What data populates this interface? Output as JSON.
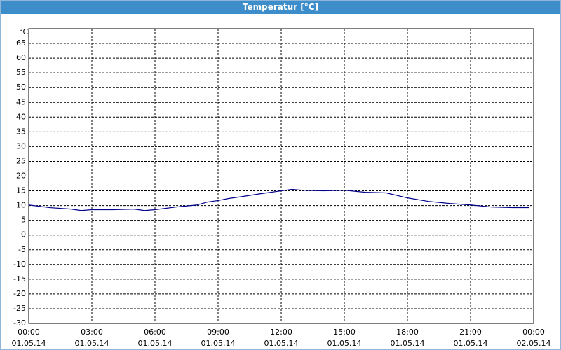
{
  "chart_data": {
    "type": "line",
    "title": "Temperatur [°C]",
    "ylabel": "°C",
    "x": [
      0,
      1,
      2,
      2.5,
      3,
      4,
      5,
      5.5,
      6,
      7,
      8,
      8.5,
      9,
      9.5,
      10,
      11,
      12,
      12.5,
      13,
      14,
      15,
      16,
      17,
      18,
      19,
      20,
      21,
      22,
      23,
      23.8
    ],
    "series": [
      {
        "name": "Temperatur",
        "color": "#00008b",
        "values": [
          10.2,
          9.3,
          8.8,
          8.3,
          8.6,
          8.6,
          8.8,
          8.3,
          8.6,
          9.5,
          10.2,
          11.2,
          11.7,
          12.4,
          12.9,
          14,
          15,
          15.5,
          15.2,
          15,
          15.2,
          14.5,
          14.3,
          12.6,
          11.4,
          10.7,
          10.2,
          9.5,
          9.3,
          9.3
        ]
      }
    ],
    "xlim": [
      0,
      24
    ],
    "xticks": [
      {
        "value": 0,
        "label": "00:00\n01.05.14"
      },
      {
        "value": 3,
        "label": "03:00\n01.05.14"
      },
      {
        "value": 6,
        "label": "06:00\n01.05.14"
      },
      {
        "value": 9,
        "label": "09:00\n01.05.14"
      },
      {
        "value": 12,
        "label": "12:00\n01.05.14"
      },
      {
        "value": 15,
        "label": "15:00\n01.05.14"
      },
      {
        "value": 18,
        "label": "18:00\n01.05.14"
      },
      {
        "value": 21,
        "label": "21:00\n01.05.14"
      },
      {
        "value": 24,
        "label": "00:00\n02.05.14"
      }
    ],
    "ylim": [
      -30,
      70
    ],
    "yticks": [
      -30,
      -25,
      -20,
      -15,
      -10,
      -5,
      0,
      5,
      10,
      15,
      20,
      25,
      30,
      35,
      40,
      45,
      50,
      55,
      60,
      65
    ],
    "grid": true
  }
}
